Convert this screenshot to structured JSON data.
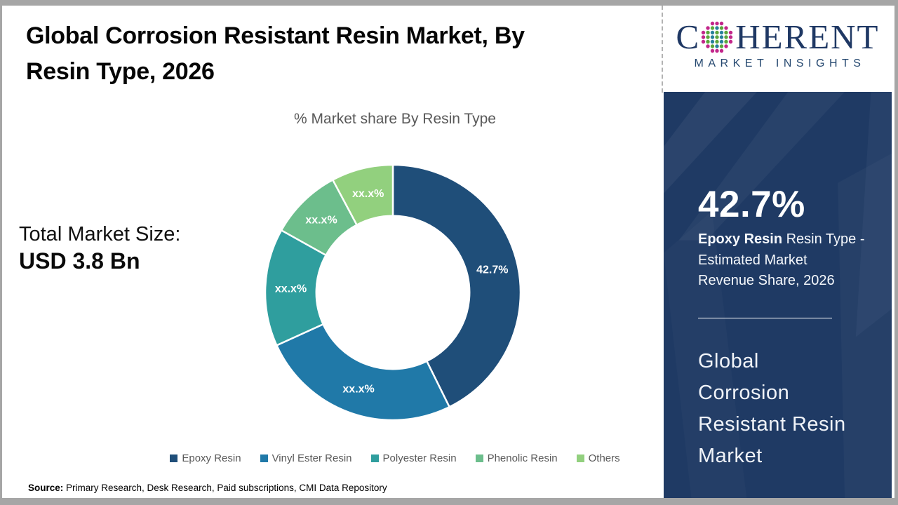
{
  "header": {
    "title_lines": [
      "Global Corrosion Resistant Resin Market, By",
      "Resin Type, 2026"
    ]
  },
  "logo": {
    "brand_pre": "C",
    "brand_post": "HERENT",
    "tagline": "MARKET INSIGHTS",
    "navy": "#1F3864",
    "globe_colors": {
      "edge": "#c2268a",
      "teal": "#27809b",
      "green": "#5ba63c"
    }
  },
  "left_stat": {
    "label": "Total Market Size:",
    "value": "USD 3.8 Bn"
  },
  "chart_data": {
    "type": "pie",
    "title": "% Market share By Resin Type",
    "donut_hole_ratio": 0.6,
    "start_angle_deg": 0,
    "direction": "clockwise",
    "legend_position": "bottom",
    "series": [
      {
        "name": "Epoxy Resin",
        "value": 42.7,
        "display": "42.7%",
        "color": "#1F4E79"
      },
      {
        "name": "Vinyl Ester Resin",
        "value": 25.5,
        "display": "xx.x%",
        "color": "#2079A8"
      },
      {
        "name": "Polyester Resin",
        "value": 14.9,
        "display": "xx.x%",
        "color": "#2F9E9E"
      },
      {
        "name": "Phenolic Resin",
        "value": 9.1,
        "display": "xx.x%",
        "color": "#6CBE8C"
      },
      {
        "name": "Others",
        "value": 7.8,
        "display": "xx.x%",
        "color": "#92D07E"
      }
    ],
    "annotations": [
      "Total Market Size: USD 3.8 Bn"
    ]
  },
  "sidebar": {
    "bg_color": "#1F3A64",
    "highlight_value": "42.7%",
    "highlight_line1_bold": "Epoxy Resin",
    "highlight_line1_rest": " Resin Type -",
    "highlight_line2": "Estimated Market",
    "highlight_line3": "Revenue Share, 2026",
    "market_name_lines": [
      "Global",
      "Corrosion",
      "Resistant Resin",
      "Market"
    ]
  },
  "footer": {
    "source_label": "Source:",
    "source_text": " Primary Research, Desk Research, Paid subscriptions, CMI Data Repository"
  }
}
